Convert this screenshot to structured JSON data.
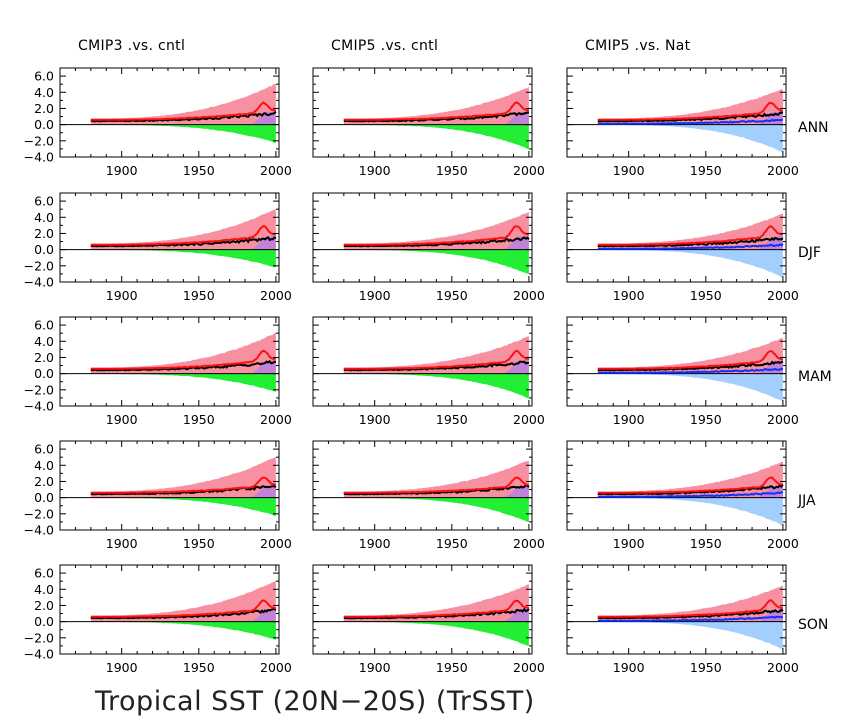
{
  "figure": {
    "title": "Tropical SST (20N−20S) (TrSST)"
  },
  "colors": {
    "upper_band": "#f791a2",
    "lower_band_cntl": "#22ee33",
    "lower_band_nat": "#a3cfff",
    "overlap": "#b97fe0",
    "obs": "#000000",
    "model_mean": "#ff1010",
    "nat_mean": "#1030ff",
    "zero_line": "#000000"
  },
  "chart_data": {
    "type": "line",
    "x_ticks": [
      1900,
      1950,
      2000
    ],
    "y_ticks": [
      "6.0",
      "4.0",
      "2.0",
      "0.0",
      "−2.0",
      "−4.0"
    ],
    "x_tick_labels": [
      "1900",
      "1950",
      "2000"
    ],
    "xlim": [
      1860,
      2002
    ],
    "ylim": [
      -4,
      7
    ],
    "columns": [
      {
        "title": "CMIP3 .vs. cntl",
        "lower": "cntl",
        "end_upper": 4.9,
        "end_lower": -2.2
      },
      {
        "title": "CMIP5 .vs. cntl",
        "lower": "cntl",
        "end_upper": 4.5,
        "end_lower": -3.0
      },
      {
        "title": "CMIP5 .vs. Nat",
        "lower": "nat",
        "end_upper": 4.3,
        "end_lower": -3.4
      }
    ],
    "rows": [
      {
        "label": "ANN",
        "red_peak": 2.7
      },
      {
        "label": "DJF",
        "red_peak": 2.9
      },
      {
        "label": "MAM",
        "red_peak": 2.8
      },
      {
        "label": "JJA",
        "red_peak": 2.5
      },
      {
        "label": "SON",
        "red_peak": 2.6
      }
    ],
    "x_start": 1880,
    "x_end": 2000,
    "start_level": 0.6
  }
}
